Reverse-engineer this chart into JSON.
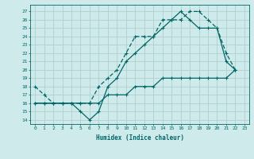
{
  "bg_color": "#ceeaea",
  "grid_color": "#b0d0d0",
  "line_color": "#006666",
  "xlabel": "Humidex (Indice chaleur)",
  "xlim": [
    -0.5,
    23.5
  ],
  "ylim": [
    13.5,
    27.8
  ],
  "yticks": [
    14,
    15,
    16,
    17,
    18,
    19,
    20,
    21,
    22,
    23,
    24,
    25,
    26,
    27
  ],
  "xticks": [
    0,
    1,
    2,
    3,
    4,
    5,
    6,
    7,
    8,
    9,
    10,
    11,
    12,
    13,
    14,
    15,
    16,
    17,
    18,
    19,
    20,
    21,
    22,
    23
  ],
  "line1_x": [
    0,
    1,
    2,
    3,
    4,
    5,
    6,
    7,
    8,
    9,
    10,
    11,
    12,
    13,
    14,
    15,
    16,
    17,
    18,
    19,
    20,
    21,
    22
  ],
  "line1_y": [
    18,
    17,
    16,
    16,
    16,
    16,
    16,
    18,
    19,
    20,
    22,
    24,
    24,
    24,
    26,
    26,
    26,
    27,
    27,
    26,
    25,
    22,
    20
  ],
  "line2_x": [
    0,
    1,
    2,
    3,
    4,
    5,
    6,
    7,
    8,
    9,
    10,
    11,
    12,
    13,
    14,
    15,
    16,
    17,
    18,
    19,
    20,
    21,
    22
  ],
  "line2_y": [
    16,
    16,
    16,
    16,
    16,
    15,
    14,
    15,
    18,
    19,
    21,
    22,
    23,
    24,
    25,
    26,
    27,
    26,
    25,
    25,
    25,
    21,
    20
  ],
  "line3_x": [
    0,
    1,
    2,
    3,
    4,
    5,
    6,
    7,
    8,
    9,
    10,
    11,
    12,
    13,
    14,
    15,
    16,
    17,
    18,
    19,
    20,
    21,
    22
  ],
  "line3_y": [
    16,
    16,
    16,
    16,
    16,
    16,
    16,
    16,
    17,
    17,
    17,
    18,
    18,
    18,
    19,
    19,
    19,
    19,
    19,
    19,
    19,
    19,
    20
  ],
  "title_fontsize": 6,
  "tick_fontsize": 4.5,
  "xlabel_fontsize": 5.5
}
